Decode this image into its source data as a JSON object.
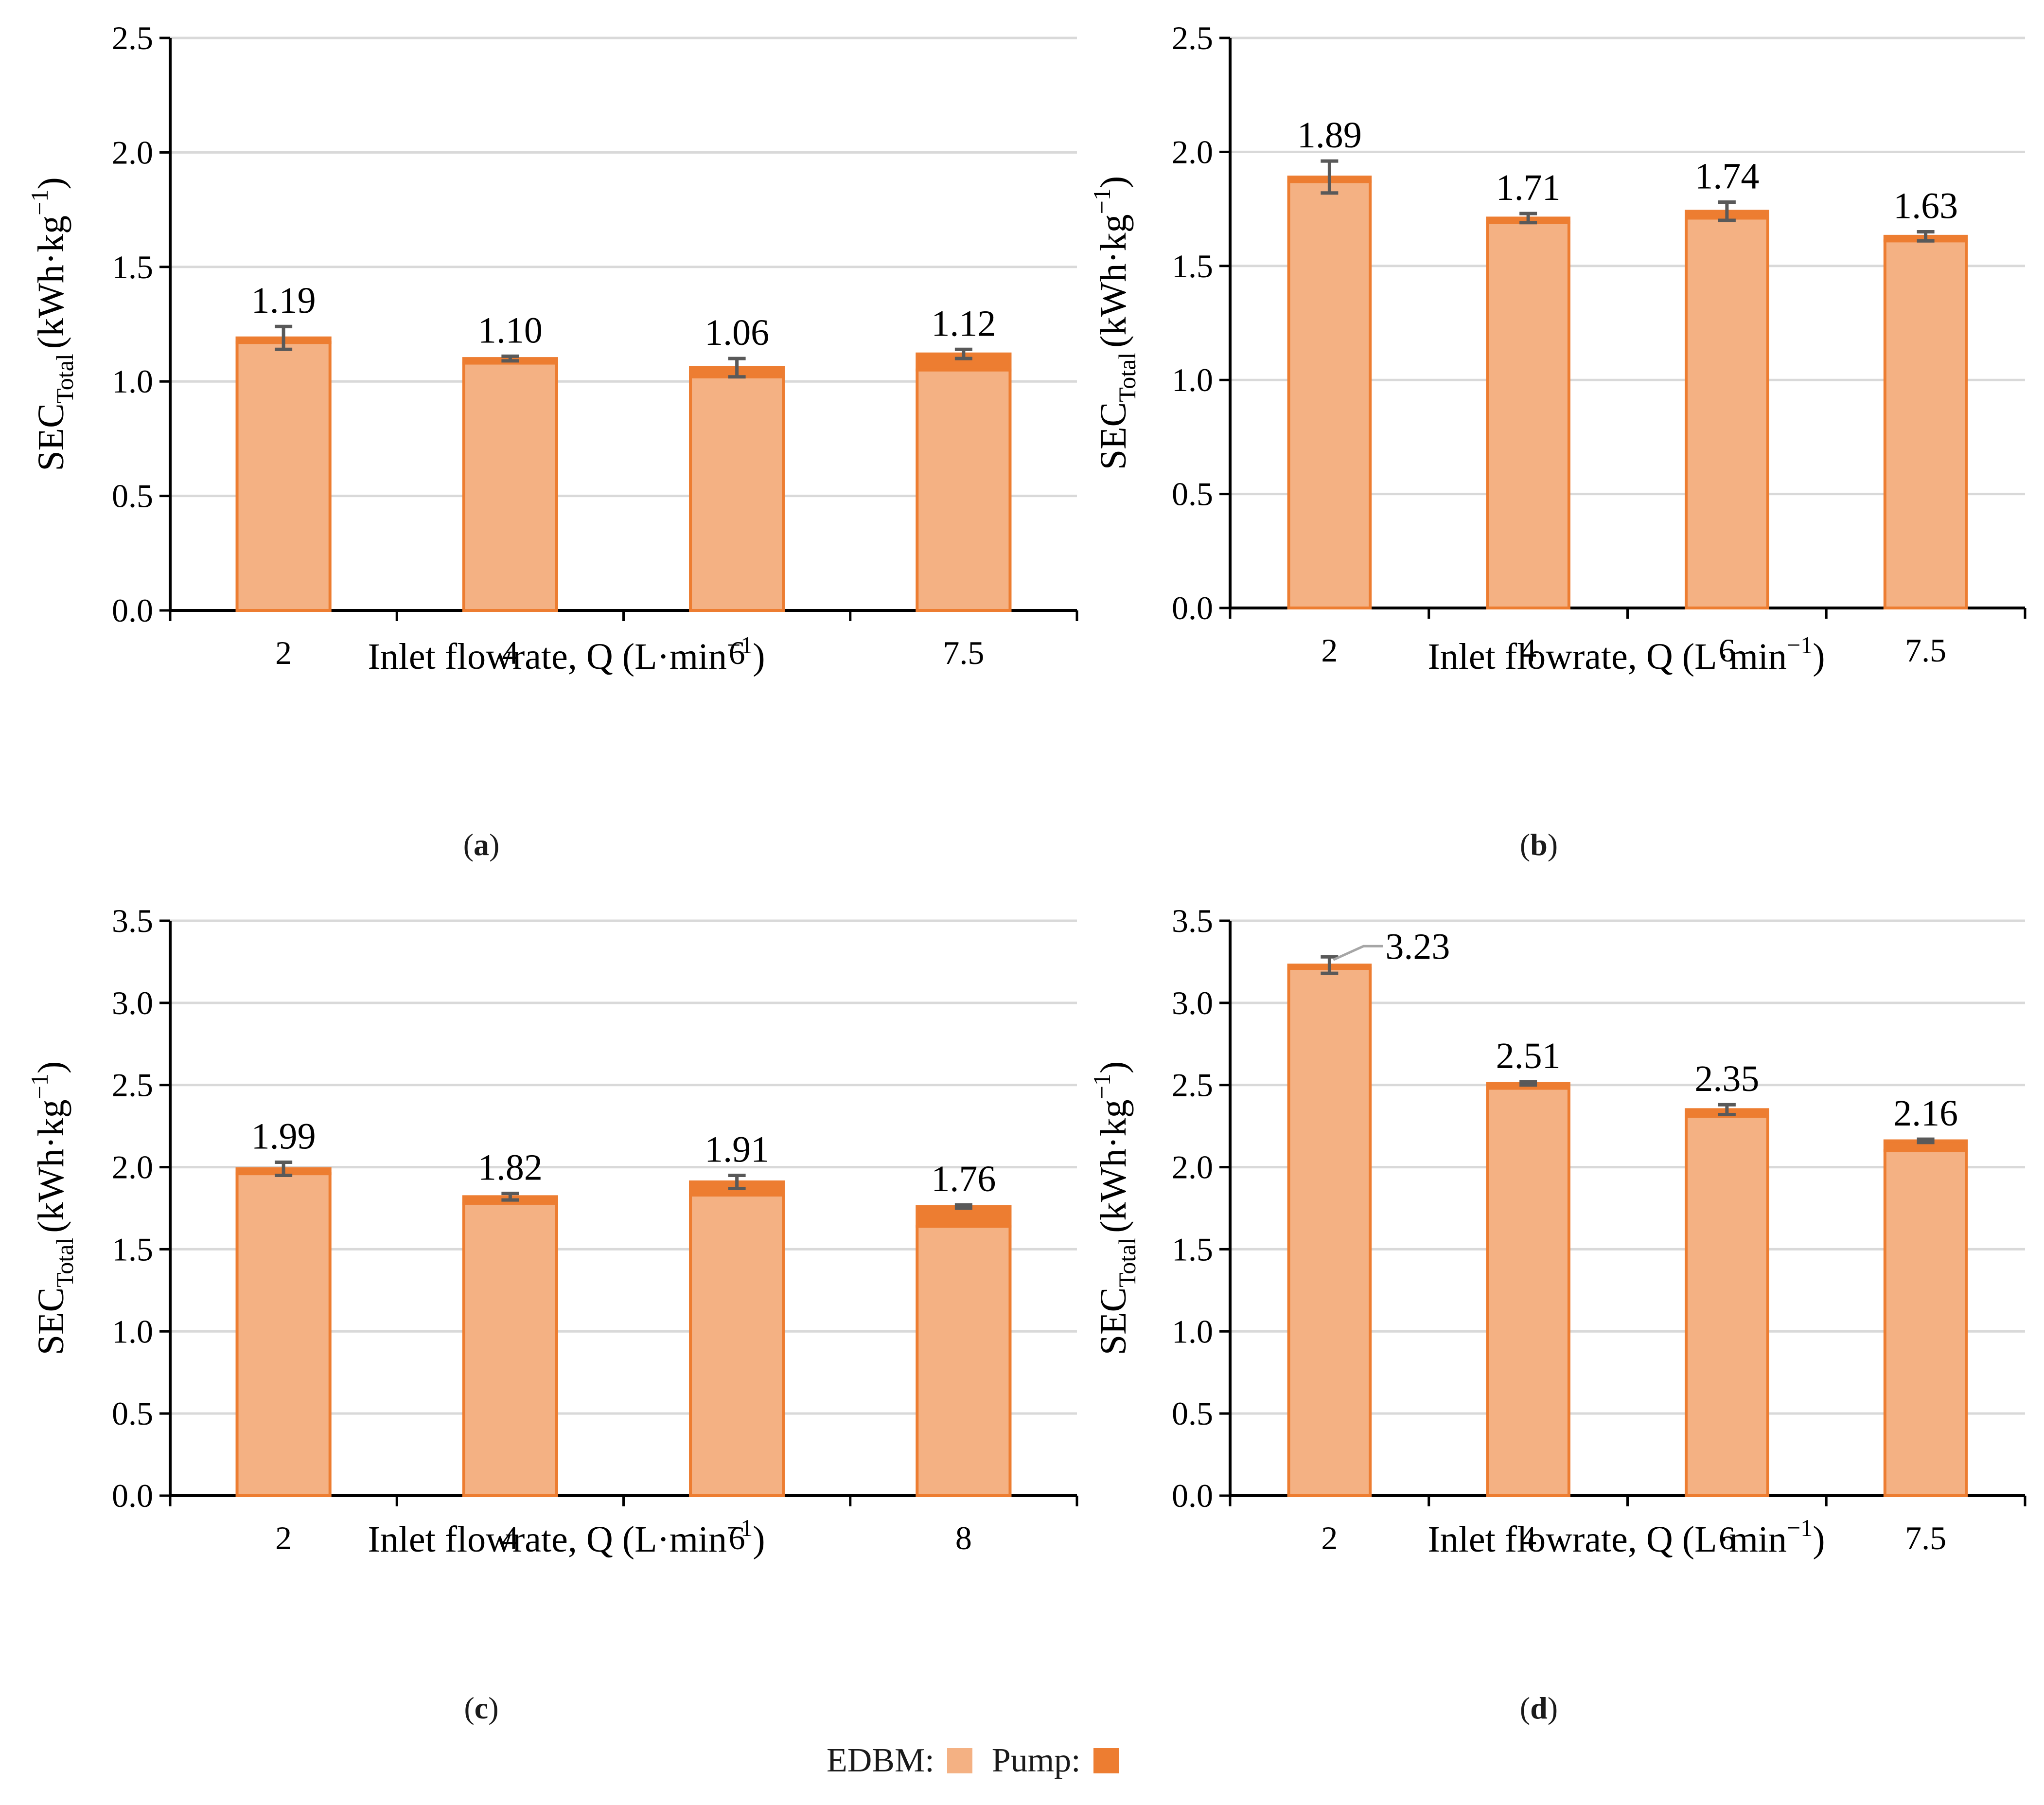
{
  "colors": {
    "edbm": "#f4b183",
    "pump": "#ed7d31",
    "bar_edge": "#ed7d31",
    "grid": "#d9d9d9",
    "axis": "#000000",
    "error": "#595959",
    "callout_line": "#a6a6a6"
  },
  "legend": {
    "edbm_label": "EDBM:",
    "pump_label": "Pump:"
  },
  "chart_data": [
    {
      "type": "bar",
      "stacked": true,
      "caption_letter": "a",
      "categories": [
        "2",
        "4",
        "6",
        "7.5"
      ],
      "series": [
        {
          "name": "EDBM",
          "values": [
            1.17,
            1.08,
            1.02,
            1.05
          ]
        },
        {
          "name": "Pump",
          "values": [
            0.02,
            0.02,
            0.04,
            0.07
          ]
        }
      ],
      "totals": [
        1.19,
        1.1,
        1.06,
        1.12
      ],
      "total_labels": [
        "1.19",
        "1.10",
        "1.06",
        "1.12"
      ],
      "error": [
        0.05,
        0.01,
        0.04,
        0.02
      ],
      "ylim": [
        0,
        2.5
      ],
      "yticks": [
        "0.0",
        "0.5",
        "1.0",
        "1.5",
        "2.0",
        "2.5"
      ],
      "ylabel_main": "SEC",
      "ylabel_sub": "Total",
      "ylabel_unit": "(kWh·kg",
      "ylabel_sup": "−1",
      "ylabel_close": ")",
      "xlabel_main": "Inlet flowrate, Q (L·min",
      "xlabel_sup": "−1",
      "xlabel_close": ")"
    },
    {
      "type": "bar",
      "stacked": true,
      "caption_letter": "b",
      "categories": [
        "2",
        "4",
        "6",
        "7.5"
      ],
      "series": [
        {
          "name": "EDBM",
          "values": [
            1.87,
            1.69,
            1.71,
            1.61
          ]
        },
        {
          "name": "Pump",
          "values": [
            0.02,
            0.02,
            0.03,
            0.02
          ]
        }
      ],
      "totals": [
        1.89,
        1.71,
        1.74,
        1.63
      ],
      "total_labels": [
        "1.89",
        "1.71",
        "1.74",
        "1.63"
      ],
      "error": [
        0.07,
        0.02,
        0.04,
        0.02
      ],
      "ylim": [
        0,
        2.5
      ],
      "yticks": [
        "0.0",
        "0.5",
        "1.0",
        "1.5",
        "2.0",
        "2.5"
      ],
      "ylabel_main": "SEC",
      "ylabel_sub": "Total",
      "ylabel_unit": "(kWh·kg",
      "ylabel_sup": "−1",
      "ylabel_close": ")",
      "xlabel_main": "Inlet flowrate, Q (L·min",
      "xlabel_sup": "−1",
      "xlabel_close": ")"
    },
    {
      "type": "bar",
      "stacked": true,
      "caption_letter": "c",
      "categories": [
        "2",
        "4",
        "6",
        "8"
      ],
      "series": [
        {
          "name": "EDBM",
          "values": [
            1.96,
            1.78,
            1.83,
            1.64
          ]
        },
        {
          "name": "Pump",
          "values": [
            0.03,
            0.04,
            0.08,
            0.12
          ]
        }
      ],
      "totals": [
        1.99,
        1.82,
        1.91,
        1.76
      ],
      "total_labels": [
        "1.99",
        "1.82",
        "1.91",
        "1.76"
      ],
      "error": [
        0.04,
        0.02,
        0.04,
        0.01
      ],
      "ylim": [
        0,
        3.5
      ],
      "yticks": [
        "0.0",
        "0.5",
        "1.0",
        "1.5",
        "2.0",
        "2.5",
        "3.0",
        "3.5"
      ],
      "ylabel_main": "SEC",
      "ylabel_sub": "Total",
      "ylabel_unit": "(kWh·kg",
      "ylabel_sup": "−1",
      "ylabel_close": ")",
      "xlabel_main": "Inlet flowrate, Q (L·min",
      "xlabel_sup": "−1",
      "xlabel_close": ")"
    },
    {
      "type": "bar",
      "stacked": true,
      "caption_letter": "d",
      "categories": [
        "2",
        "4",
        "6",
        "7.5"
      ],
      "series": [
        {
          "name": "EDBM",
          "values": [
            3.21,
            2.48,
            2.31,
            2.1
          ]
        },
        {
          "name": "Pump",
          "values": [
            0.02,
            0.03,
            0.04,
            0.06
          ]
        }
      ],
      "totals": [
        3.23,
        2.51,
        2.35,
        2.16
      ],
      "total_labels": [
        "3.23",
        "2.51",
        "2.35",
        "2.16"
      ],
      "error": [
        0.05,
        0.01,
        0.03,
        0.01
      ],
      "ylim": [
        0,
        3.5
      ],
      "yticks": [
        "0.0",
        "0.5",
        "1.0",
        "1.5",
        "2.0",
        "2.5",
        "3.0",
        "3.5"
      ],
      "ylabel_main": "SEC",
      "ylabel_sub": "Total",
      "ylabel_unit": "(kWh·kg",
      "ylabel_sup": "−1",
      "ylabel_close": ")",
      "xlabel_main": "Inlet flowrate, Q (L·min",
      "xlabel_sup": "−1",
      "xlabel_close": ")"
    }
  ]
}
